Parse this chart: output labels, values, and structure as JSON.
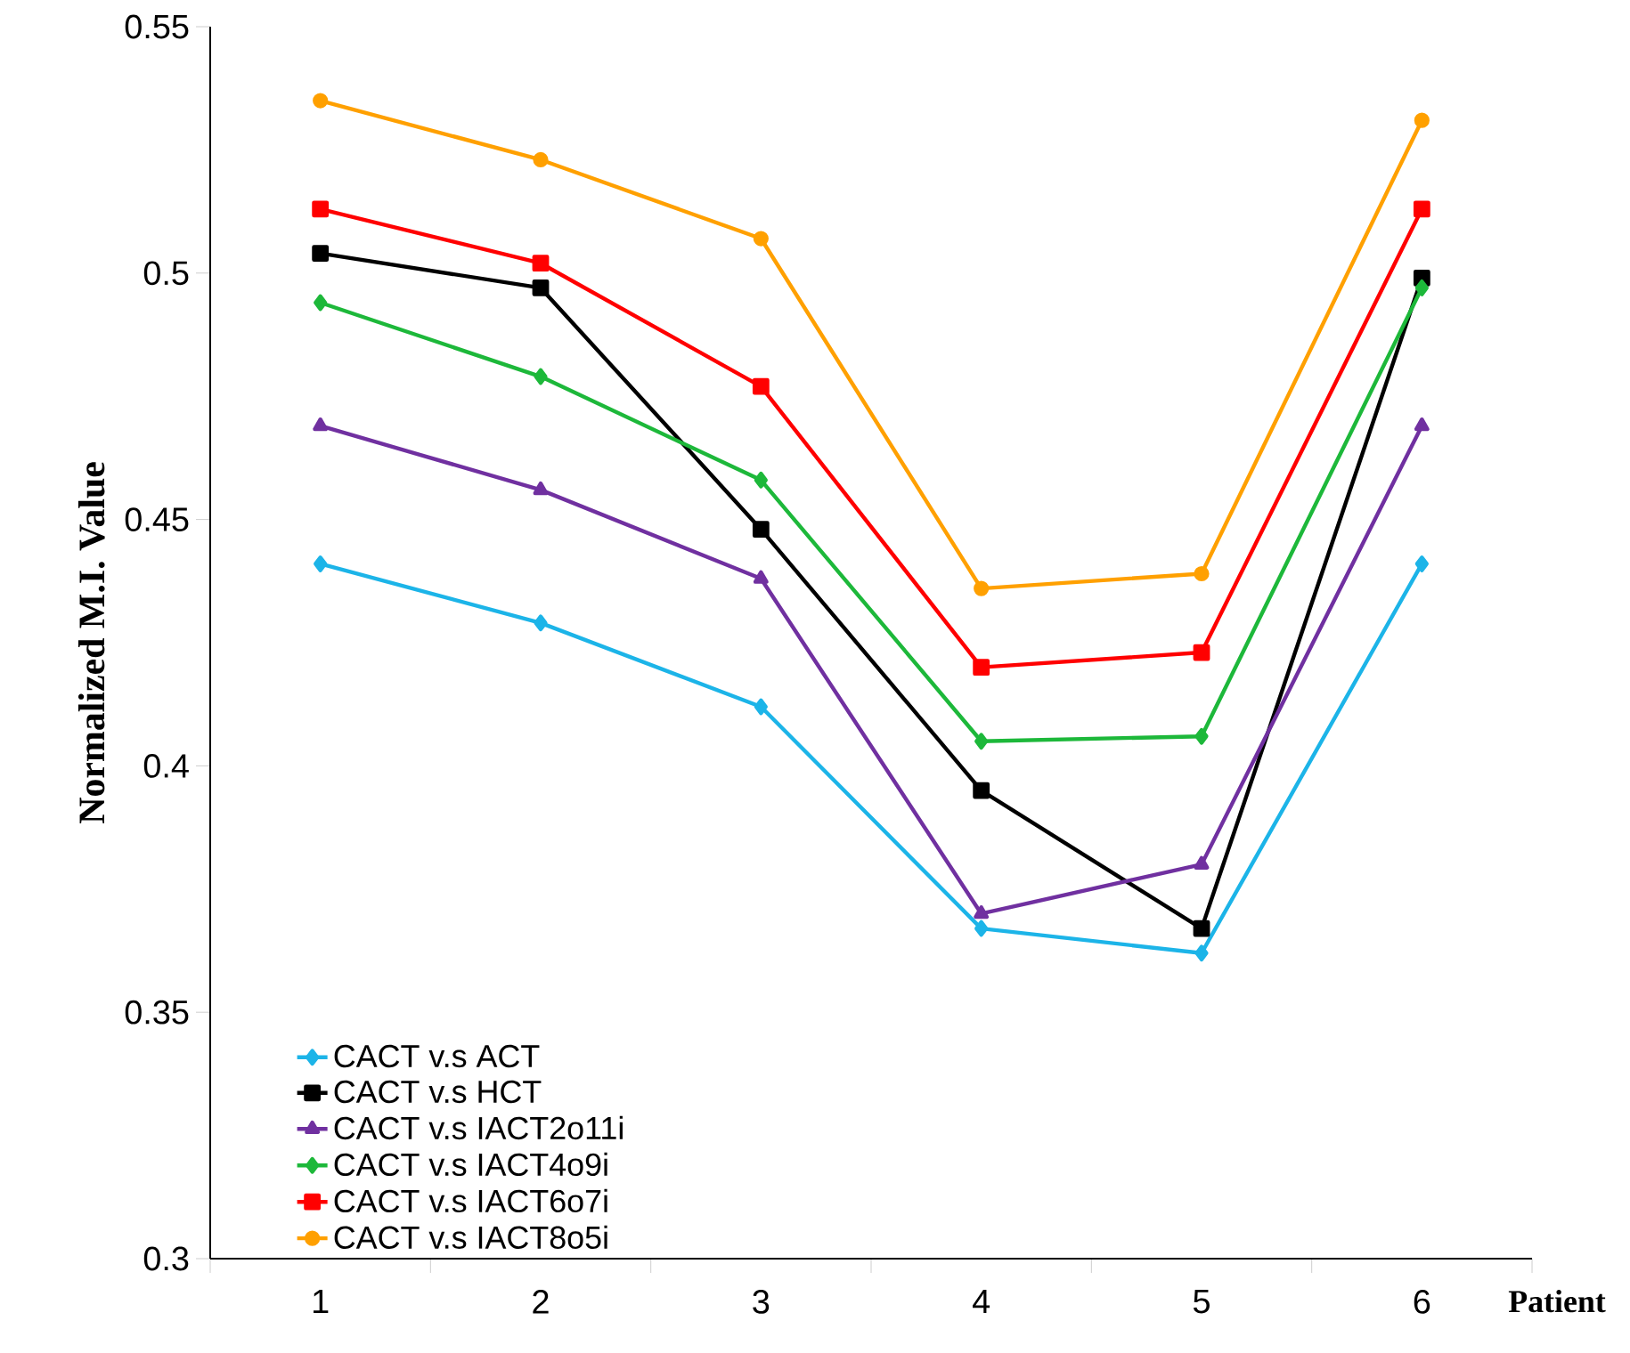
{
  "chart_data": {
    "type": "line",
    "xlabel": "Patient",
    "ylabel": "Normalized M.I. Value",
    "categories": [
      "1",
      "2",
      "3",
      "4",
      "5",
      "6"
    ],
    "ylim": [
      0.3,
      0.55
    ],
    "yticks": [
      0.3,
      0.35,
      0.4,
      0.45,
      0.5,
      0.55
    ],
    "grid": false,
    "legend": "bottom left",
    "line_style": "solid",
    "series": [
      {
        "name": "CACT v.s ACT",
        "color": "#1cb4e8",
        "marker": "diamond",
        "values": [
          0.441,
          0.429,
          0.412,
          0.367,
          0.362,
          0.441
        ]
      },
      {
        "name": "CACT v.s HCT",
        "color": "#000000",
        "marker": "square",
        "values": [
          0.504,
          0.497,
          0.448,
          0.395,
          0.367,
          0.499
        ]
      },
      {
        "name": "CACT v.s IACT2o11i",
        "color": "#7030a0",
        "marker": "triangle",
        "values": [
          0.469,
          0.456,
          0.438,
          0.37,
          0.38,
          0.469
        ]
      },
      {
        "name": "CACT v.s IACT4o9i",
        "color": "#1db83a",
        "marker": "diamond",
        "values": [
          0.494,
          0.479,
          0.458,
          0.405,
          0.406,
          0.497
        ]
      },
      {
        "name": "CACT v.s IACT6o7i",
        "color": "#ff0000",
        "marker": "square",
        "values": [
          0.513,
          0.502,
          0.477,
          0.42,
          0.423,
          0.513
        ]
      },
      {
        "name": "CACT v.s IACT8o5i",
        "color": "#ffa000",
        "marker": "circle",
        "values": [
          0.535,
          0.523,
          0.507,
          0.436,
          0.439,
          0.531
        ]
      }
    ]
  }
}
